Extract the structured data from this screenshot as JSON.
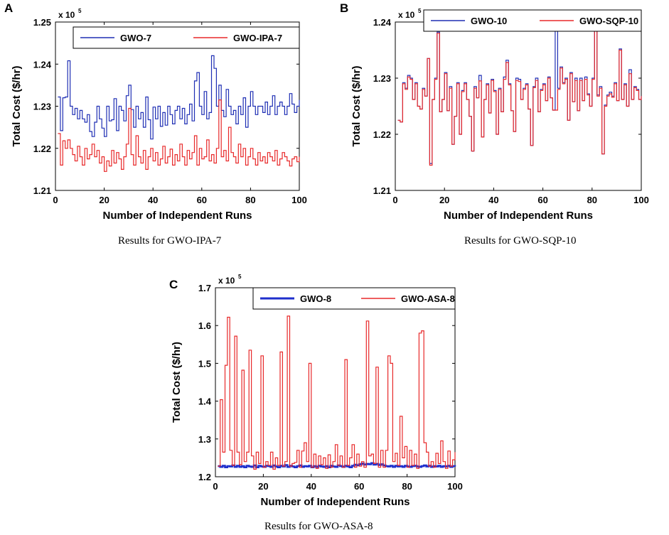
{
  "chart_data": [
    {
      "id": "A",
      "panel_label": "A",
      "type": "line",
      "caption": "Results for GWO-IPA-7",
      "xlabel": "Number of Independent Runs",
      "ylabel": "Total Cost ($/hr)",
      "multiplier": "x 10",
      "multiplier_exp": "5",
      "xlim": [
        0,
        100
      ],
      "ylim": [
        1.21,
        1.25
      ],
      "xticks": [
        0,
        20,
        40,
        60,
        80,
        100
      ],
      "yticks": [
        1.21,
        1.22,
        1.23,
        1.24,
        1.25
      ],
      "xtick_labels": [
        "0",
        "20",
        "40",
        "60",
        "80",
        "100"
      ],
      "ytick_labels": [
        "1.21",
        "1.22",
        "1.23",
        "1.24",
        "1.25"
      ],
      "legend_position": "top",
      "step": true,
      "series": [
        {
          "name": "GWO-7",
          "color": "#1f2fb4",
          "values": [
            1.2322,
            1.2242,
            1.232,
            1.2322,
            1.2408,
            1.23,
            1.228,
            1.2295,
            1.227,
            1.229,
            1.227,
            1.2262,
            1.228,
            1.224,
            1.2228,
            1.2262,
            1.23,
            1.227,
            1.2248,
            1.2228,
            1.23,
            1.2265,
            1.2268,
            1.2318,
            1.2242,
            1.23,
            1.229,
            1.2265,
            1.2325,
            1.235,
            1.2292,
            1.225,
            1.23,
            1.227,
            1.2285,
            1.225,
            1.2322,
            1.2268,
            1.2222,
            1.2298,
            1.227,
            1.23,
            1.2252,
            1.2285,
            1.2255,
            1.23,
            1.228,
            1.2258,
            1.229,
            1.23,
            1.227,
            1.2295,
            1.2258,
            1.228,
            1.2305,
            1.2265,
            1.236,
            1.238,
            1.23,
            1.228,
            1.2335,
            1.227,
            1.2285,
            1.242,
            1.239,
            1.23,
            1.235,
            1.229,
            1.2275,
            1.234,
            1.23,
            1.228,
            1.229,
            1.2258,
            1.23,
            1.228,
            1.232,
            1.225,
            1.23,
            1.2335,
            1.23,
            1.228,
            1.23,
            1.23,
            1.2285,
            1.231,
            1.228,
            1.23,
            1.2325,
            1.228,
            1.23,
            1.231,
            1.23,
            1.228,
            1.23,
            1.233,
            1.2305,
            1.2285,
            1.23,
            1.2315
          ]
        },
        {
          "name": "GWO-IPA-7",
          "color": "#e8292a",
          "values": [
            1.2235,
            1.216,
            1.2218,
            1.22,
            1.222,
            1.22,
            1.2185,
            1.217,
            1.2205,
            1.218,
            1.216,
            1.22,
            1.2175,
            1.2185,
            1.221,
            1.218,
            1.2195,
            1.2165,
            1.218,
            1.2145,
            1.217,
            1.2158,
            1.2195,
            1.2165,
            1.219,
            1.2175,
            1.215,
            1.218,
            1.221,
            1.2295,
            1.2185,
            1.216,
            1.223,
            1.218,
            1.2165,
            1.2195,
            1.215,
            1.218,
            1.22,
            1.217,
            1.219,
            1.216,
            1.2175,
            1.2205,
            1.2165,
            1.218,
            1.2198,
            1.216,
            1.2185,
            1.217,
            1.221,
            1.218,
            1.216,
            1.2195,
            1.2175,
            1.219,
            1.223,
            1.216,
            1.22,
            1.2175,
            1.218,
            1.222,
            1.217,
            1.2185,
            1.2165,
            1.22,
            1.2315,
            1.218,
            1.2195,
            1.217,
            1.225,
            1.219,
            1.218,
            1.2165,
            1.221,
            1.218,
            1.22,
            1.216,
            1.218,
            1.22,
            1.2175,
            1.216,
            1.219,
            1.217,
            1.218,
            1.2165,
            1.219,
            1.218,
            1.217,
            1.2195,
            1.216,
            1.2175,
            1.219,
            1.218,
            1.217,
            1.2158,
            1.2175,
            1.218,
            1.2168,
            1.218
          ]
        }
      ]
    },
    {
      "id": "B",
      "panel_label": "B",
      "type": "line",
      "caption": "Results for GWO-SQP-10",
      "xlabel": "Number of Independent Runs",
      "ylabel": "Total Cost ($/hr)",
      "multiplier": "x 10",
      "multiplier_exp": "5",
      "xlim": [
        0,
        100
      ],
      "ylim": [
        1.21,
        1.24
      ],
      "xticks": [
        0,
        20,
        40,
        60,
        80,
        100
      ],
      "yticks": [
        1.21,
        1.22,
        1.23,
        1.24
      ],
      "xtick_labels": [
        "0",
        "20",
        "40",
        "60",
        "80",
        "100"
      ],
      "ytick_labels": [
        "1.21",
        "1.22",
        "1.23",
        "1.24"
      ],
      "legend_position": "top",
      "step": true,
      "series": [
        {
          "name": "GWO-10",
          "color": "#1f2fb4",
          "values": [
            1.2225,
            1.2222,
            1.2292,
            1.2282,
            1.2305,
            1.23,
            1.2262,
            1.2292,
            1.225,
            1.2245,
            1.2282,
            1.2268,
            1.2335,
            1.2148,
            1.2262,
            1.23,
            1.2382,
            1.224,
            1.2262,
            1.231,
            1.2242,
            1.2285,
            1.2182,
            1.2232,
            1.2292,
            1.22,
            1.2278,
            1.2292,
            1.2262,
            1.2232,
            1.217,
            1.2285,
            1.2265,
            1.2305,
            1.2195,
            1.2262,
            1.229,
            1.2238,
            1.2298,
            1.2278,
            1.22,
            1.2282,
            1.224,
            1.2302,
            1.2332,
            1.229,
            1.2242,
            1.2205,
            1.23,
            1.2298,
            1.2262,
            1.2282,
            1.229,
            1.2245,
            1.218,
            1.2285,
            1.23,
            1.224,
            1.228,
            1.229,
            1.226,
            1.2302,
            1.2265,
            1.2243,
            1.2392,
            1.2282,
            1.232,
            1.2292,
            1.23,
            1.2225,
            1.231,
            1.2258,
            1.23,
            1.2242,
            1.23,
            1.226,
            1.2302,
            1.2272,
            1.225,
            1.23,
            1.2388,
            1.227,
            1.2285,
            1.2165,
            1.2252,
            1.227,
            1.2275,
            1.2268,
            1.2292,
            1.226,
            1.2352,
            1.2262,
            1.229,
            1.225,
            1.2315,
            1.2262,
            1.2285,
            1.228,
            1.2262,
            1.2268
          ]
        },
        {
          "name": "GWO-SQP-10",
          "color": "#e8292a",
          "values": [
            1.2225,
            1.2222,
            1.229,
            1.228,
            1.2302,
            1.2298,
            1.2262,
            1.229,
            1.225,
            1.2245,
            1.228,
            1.2268,
            1.2335,
            1.2145,
            1.2262,
            1.2298,
            1.238,
            1.224,
            1.2262,
            1.2308,
            1.2242,
            1.2282,
            1.2182,
            1.2232,
            1.229,
            1.22,
            1.2276,
            1.229,
            1.2262,
            1.2232,
            1.217,
            1.2282,
            1.2265,
            1.2295,
            1.2195,
            1.2262,
            1.2288,
            1.2238,
            1.2296,
            1.2276,
            1.22,
            1.228,
            1.224,
            1.2298,
            1.2328,
            1.2288,
            1.2242,
            1.2205,
            1.2296,
            1.2294,
            1.2262,
            1.228,
            1.2288,
            1.2245,
            1.218,
            1.2283,
            1.2296,
            1.224,
            1.2278,
            1.2288,
            1.226,
            1.23,
            1.2265,
            1.2243,
            1.2243,
            1.228,
            1.2318,
            1.229,
            1.2298,
            1.2225,
            1.2308,
            1.2258,
            1.2296,
            1.2242,
            1.2296,
            1.226,
            1.2298,
            1.227,
            1.225,
            1.2298,
            1.2386,
            1.2268,
            1.2282,
            1.2165,
            1.225,
            1.2268,
            1.2272,
            1.2266,
            1.229,
            1.226,
            1.235,
            1.2262,
            1.2288,
            1.225,
            1.2308,
            1.2262,
            1.2283,
            1.2278,
            1.2262,
            1.2268
          ]
        }
      ]
    },
    {
      "id": "C",
      "panel_label": "C",
      "type": "line",
      "caption": "Results for GWO-ASA-8",
      "xlabel": "Number of Independent Runs",
      "ylabel": "Total Cost ($/hr)",
      "multiplier": "x 10",
      "multiplier_exp": "5",
      "xlim": [
        0,
        100
      ],
      "ylim": [
        1.2,
        1.7
      ],
      "xticks": [
        0,
        20,
        40,
        60,
        80,
        100
      ],
      "yticks": [
        1.2,
        1.3,
        1.4,
        1.5,
        1.6,
        1.7
      ],
      "xtick_labels": [
        "0",
        "20",
        "40",
        "60",
        "80",
        "100"
      ],
      "ytick_labels": [
        "1.2",
        "1.3",
        "1.4",
        "1.5",
        "1.6",
        "1.7"
      ],
      "legend_position": "top",
      "step": true,
      "series": [
        {
          "name": "GWO-8",
          "color": "#1f2fcc",
          "values": [
            1.228,
            1.226,
            1.229,
            1.225,
            1.228,
            1.227,
            1.23,
            1.226,
            1.229,
            1.226,
            1.228,
            1.225,
            1.229,
            1.227,
            1.226,
            1.23,
            1.225,
            1.229,
            1.227,
            1.226,
            1.229,
            1.228,
            1.226,
            1.23,
            1.227,
            1.225,
            1.229,
            1.227,
            1.231,
            1.226,
            1.229,
            1.227,
            1.225,
            1.228,
            1.23,
            1.226,
            1.228,
            1.227,
            1.229,
            1.225,
            1.228,
            1.226,
            1.229,
            1.227,
            1.226,
            1.228,
            1.225,
            1.229,
            1.227,
            1.226,
            1.23,
            1.228,
            1.226,
            1.229,
            1.227,
            1.225,
            1.229,
            1.232,
            1.23,
            1.233,
            1.235,
            1.232,
            1.234,
            1.233,
            1.236,
            1.232,
            1.234,
            1.231,
            1.233,
            1.23,
            1.228,
            1.227,
            1.229,
            1.226,
            1.229,
            1.227,
            1.228,
            1.226,
            1.229,
            1.227,
            1.226,
            1.228,
            1.229,
            1.227,
            1.226,
            1.228,
            1.23,
            1.227,
            1.229,
            1.226,
            1.228,
            1.227,
            1.229,
            1.226,
            1.228,
            1.227,
            1.229,
            1.226,
            1.228,
            1.227
          ]
        },
        {
          "name": "GWO-ASA-8",
          "color": "#e8292a",
          "values": [
            1.228,
            1.404,
            1.265,
            1.495,
            1.622,
            1.27,
            1.23,
            1.572,
            1.265,
            1.232,
            1.482,
            1.24,
            1.265,
            1.535,
            1.255,
            1.22,
            1.265,
            1.235,
            1.52,
            1.225,
            1.24,
            1.23,
            1.265,
            1.22,
            1.25,
            1.23,
            1.53,
            1.228,
            1.24,
            1.625,
            1.228,
            1.235,
            1.238,
            1.27,
            1.225,
            1.268,
            1.29,
            1.24,
            1.5,
            1.225,
            1.26,
            1.222,
            1.255,
            1.232,
            1.25,
            1.222,
            1.258,
            1.225,
            1.24,
            1.285,
            1.23,
            1.255,
            1.225,
            1.51,
            1.23,
            1.25,
            1.285,
            1.225,
            1.26,
            1.228,
            1.24,
            1.225,
            1.612,
            1.255,
            1.26,
            1.235,
            1.49,
            1.225,
            1.27,
            1.225,
            1.27,
            1.52,
            1.5,
            1.24,
            1.262,
            1.23,
            1.36,
            1.25,
            1.28,
            1.225,
            1.27,
            1.23,
            1.26,
            1.222,
            1.58,
            1.586,
            1.29,
            1.265,
            1.228,
            1.24,
            1.225,
            1.262,
            1.235,
            1.295,
            1.24,
            1.222,
            1.268,
            1.228,
            1.245,
            1.265
          ]
        }
      ]
    }
  ]
}
